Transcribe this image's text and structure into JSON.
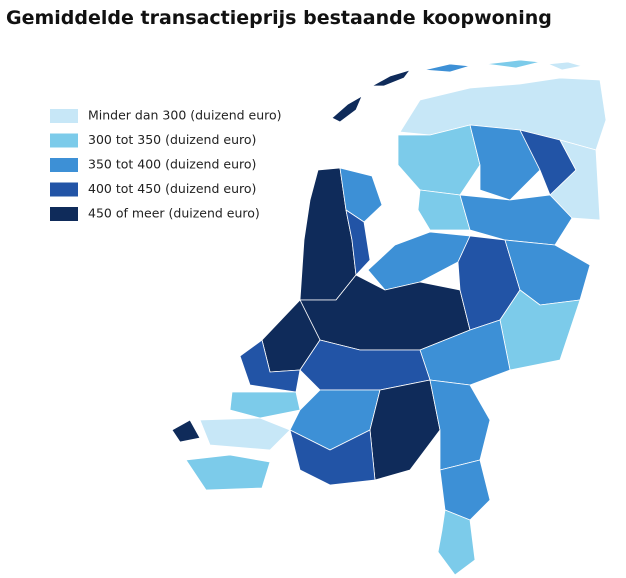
{
  "title": "Gemiddelde transactieprijs bestaande koopwoning",
  "legend": {
    "items": [
      {
        "label": "Minder dan 300 (duizend euro)",
        "color": "#c7e7f7"
      },
      {
        "label": "300 tot 350 (duizend euro)",
        "color": "#7ccbea"
      },
      {
        "label": "350 tot 400 (duizend euro)",
        "color": "#3d90d6"
      },
      {
        "label": "400 tot 450 (duizend euro)",
        "color": "#2254a6"
      },
      {
        "label": "450 of meer (duizend euro)",
        "color": "#0f2b5a"
      }
    ]
  }
}
